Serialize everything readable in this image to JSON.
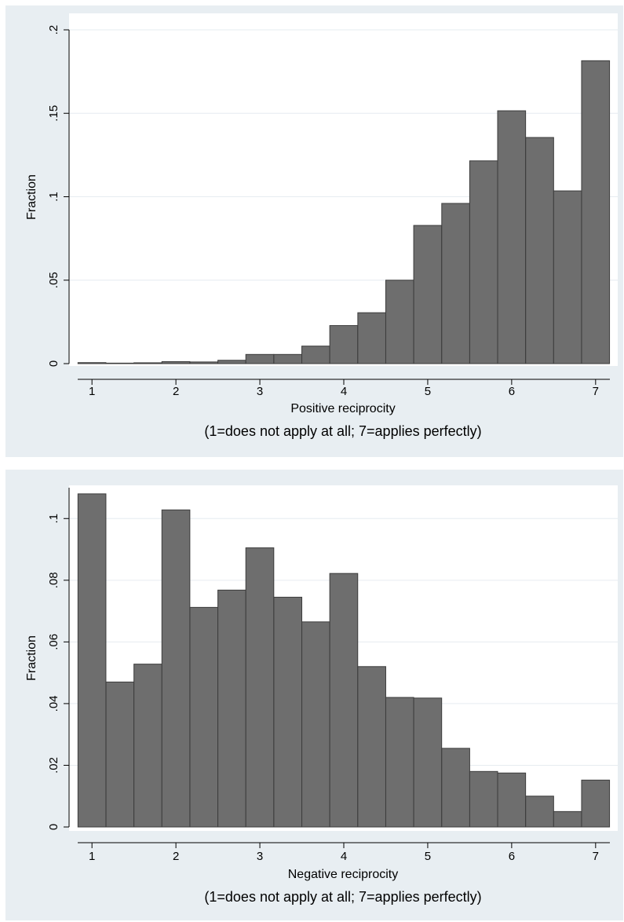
{
  "chart_data": [
    {
      "type": "bar",
      "histogram": true,
      "ylabel": "Fraction",
      "xlabel": "Positive reciprocity",
      "note": "(1=does not apply at all; 7=applies perfectly)",
      "xlim": [
        0.83,
        7.17
      ],
      "ylim": [
        0,
        0.2
      ],
      "xticks": [
        "1",
        "2",
        "3",
        "4",
        "5",
        "6",
        "7"
      ],
      "yticks": [
        "0",
        ".05",
        ".1",
        ".15",
        ".2"
      ],
      "grid": true,
      "bin_width": 0.333,
      "bin_starts": [
        0.833,
        1.167,
        1.5,
        1.833,
        2.167,
        2.5,
        2.833,
        3.167,
        3.5,
        3.833,
        4.167,
        4.5,
        4.833,
        5.167,
        5.5,
        5.833,
        6.167,
        6.5,
        6.833
      ],
      "values": [
        0.0006,
        0.0003,
        0.0005,
        0.0012,
        0.001,
        0.002,
        0.0055,
        0.0055,
        0.0105,
        0.0228,
        0.0305,
        0.05,
        0.0828,
        0.096,
        0.1215,
        0.1515,
        0.1355,
        0.1035,
        0.1815
      ],
      "bar_color": "#6e6e6e"
    },
    {
      "type": "bar",
      "histogram": true,
      "ylabel": "Fraction",
      "xlabel": "Negative reciprocity",
      "note": "(1=does not apply at all; 7=applies perfectly)",
      "xlim": [
        0.83,
        7.17
      ],
      "ylim": [
        0,
        0.11
      ],
      "xticks": [
        "1",
        "2",
        "3",
        "4",
        "5",
        "6",
        "7"
      ],
      "yticks": [
        "0",
        ".02",
        ".04",
        ".06",
        ".08",
        ".1"
      ],
      "grid": true,
      "bin_width": 0.333,
      "bin_starts": [
        0.833,
        1.167,
        1.5,
        1.833,
        2.167,
        2.5,
        2.833,
        3.167,
        3.5,
        3.833,
        4.167,
        4.5,
        4.833,
        5.167,
        5.5,
        5.833,
        6.167,
        6.5,
        6.833
      ],
      "values": [
        0.108,
        0.047,
        0.0528,
        0.1028,
        0.0712,
        0.0768,
        0.0905,
        0.0745,
        0.0665,
        0.0822,
        0.052,
        0.042,
        0.0418,
        0.0255,
        0.018,
        0.0175,
        0.01,
        0.005,
        0.0152
      ],
      "bar_color": "#6e6e6e"
    }
  ]
}
